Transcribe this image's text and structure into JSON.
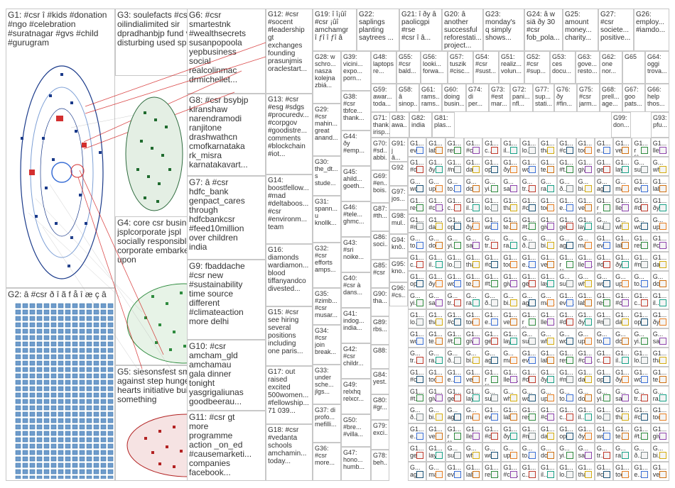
{
  "groups": [
    {
      "id": "G1",
      "label": "G1: #csr î #kids #donation\n#ngo #celebration\n#suratnagar #gvs #child\n#gurugram"
    },
    {
      "id": "G2",
      "label": "G2: â #csr ð î ã f å î æ ç â"
    },
    {
      "id": "G3",
      "label": "G3: soulefacts #csr\noilindialimited sir\ndpradhanbjp fund very\ndisturbing used spread"
    },
    {
      "id": "G4",
      "label": "G4: core csr business\njsplcorporate jspl\nsocially responsible\ncorporate embarked\nupon"
    },
    {
      "id": "G5",
      "label": "G5: siesonsfest small\nagainst step hunger up\nhearts initiative build\nsomething"
    },
    {
      "id": "G6",
      "label": "G6: #csr\nsmartestnk\n#wealthsecrets\nsusanpopoola\nyepbusiness\nsocial\nrealcolinmac\ndrmichellet..."
    },
    {
      "id": "G7",
      "label": "G7: â #csr\nhdfc_bank\ngenpact_cares\nthrough\nhdfcbankcsr\n#feed10million\nover children\nindia"
    },
    {
      "id": "G8",
      "label": "G8: #csr bsybjp\nkiranshaw\nnarendramodi\nranjitone\ndrashwathcn\ncmofkarnataka\nrk_misra\nkarnatakavart..."
    },
    {
      "id": "G9",
      "label": "G9: fbaddache\n#csr new\n#sustainability\ntime source\ndifferent\n#climateaction\nmore delhi"
    },
    {
      "id": "G10",
      "label": "G10: #csr\namcham_gld\namchamau\ngala dinner\ntonight\nyasgrigaliunas\ngoodbeerau..."
    },
    {
      "id": "G11",
      "label": "G11: #csr gt\nmore\nprogramme\naction _on_ed\n#causemarketi...\ncompanies\nfacebook..."
    },
    {
      "id": "G12",
      "label": "G12: #csr\n#socent\n#leadership\ngt\nexchanges\nfounding\nprasunjmis\noraclestart..."
    },
    {
      "id": "G13",
      "label": "G13: #csr\n#esg #sdgs\n#procuredv...\n#corpgov\n#goodistre...\ncomments\n#blockchain\n#iot..."
    },
    {
      "id": "G14",
      "label": "G14:\nboostfellow...\n#mad\n#deltaboos...\n#csr\n#environm...\nteam"
    },
    {
      "id": "G15",
      "label": "G15: #csr\nsee hiring\nseveral\npositions\nincluding\none paris..."
    },
    {
      "id": "G16",
      "label": "G16:\ndiamonds\nwardiamon...\nblood\ntiffanyandco\ndivested..."
    },
    {
      "id": "G17",
      "label": "G17: out\nraised\nexcited\n500women...\n#fellowship...\n71 039..."
    },
    {
      "id": "G18",
      "label": "G18: #csr\n#vedanta\nschools\namchamin...\ntoday..."
    },
    {
      "id": "G19",
      "label": "G19: î î¡ûî\n#csr ¡ûî\namchamgr\nî ƒî î ƒî â"
    },
    {
      "id": "G20",
      "label": "G20: â\nanother\nsuccessful\nreforestati...\nproject..."
    },
    {
      "id": "G21",
      "label": "G21: î ðy â\npaolicgpi\n#rse\n#csr î â..."
    },
    {
      "id": "G22",
      "label": "G22:\nsaplings\nplanting\nsaytrees ..."
    },
    {
      "id": "G23",
      "label": "G23:\nmonday's\nq simply\nshows..."
    },
    {
      "id": "G24",
      "label": "G24: â w\nsiä ðy 30\n#csr\nfob_pola..."
    },
    {
      "id": "G25",
      "label": "G25:\namount\nmoney...\ncharity..."
    },
    {
      "id": "G26",
      "label": "G26:\nemploy...\n#iamdo..."
    },
    {
      "id": "G27",
      "label": "G27:\n#csr\nsociete...\npositive..."
    },
    {
      "id": "G28",
      "label": "G28: w\nschro...\nnasza\nkolejna\nzbiá..."
    },
    {
      "id": "G29",
      "label": "G29:\n#csr\nmahin...\ngreat\nanand..."
    },
    {
      "id": "G30",
      "label": "G30:\nthe_dt...\ns\nstude..."
    },
    {
      "id": "G31",
      "label": "G31:\nspann...\nu\nknollk..."
    },
    {
      "id": "G32",
      "label": "G32:\n#csr\nefforts\namps..."
    },
    {
      "id": "G33",
      "label": "G33:\nunder\nsche...\njlgs..."
    },
    {
      "id": "G34",
      "label": "G34:\n#csr\njoin\nbreak..."
    },
    {
      "id": "G35",
      "label": "G35:\n#zimb...\n#csr\nmusar..."
    },
    {
      "id": "G36",
      "label": "G36:\n#csr\nmore..."
    },
    {
      "id": "G37",
      "label": "G37: di\nprofo...\nmefilli..."
    },
    {
      "id": "G38",
      "label": "G38:\n#csr\ntbfce...\nthank..."
    },
    {
      "id": "G39",
      "label": "G39:\nvicini...\nexpo...\nporn..."
    },
    {
      "id": "G40",
      "label": "G40:\n#csr à\ndans..."
    },
    {
      "id": "G41",
      "label": "G41:\nindog...\nindia..."
    },
    {
      "id": "G42",
      "label": "G42:\n#csr\nchildr..."
    },
    {
      "id": "G43",
      "label": "G43:\n#sri\nnoike..."
    },
    {
      "id": "G44",
      "label": "G44:\nðy\n#emp..."
    },
    {
      "id": "G45",
      "label": "G45:\nahild...\ngoeth..."
    },
    {
      "id": "G46",
      "label": "G46:\n#tele...\nghmc..."
    },
    {
      "id": "G47",
      "label": "G47:\nhono...\nhumb..."
    },
    {
      "id": "G48",
      "label": "G48:\nlaptops\nre..."
    },
    {
      "id": "G49",
      "label": "G49:\nrelxhq\nrelxcr..."
    },
    {
      "id": "G50",
      "label": "G50:\n#bre...\n#villa..."
    },
    {
      "id": "G51",
      "label": "G51:\nrealiz...\nvolun..."
    },
    {
      "id": "G52",
      "label": "G52:\n#csr\n#sup..."
    },
    {
      "id": "G53",
      "label": "G53:\nces\ndocu..."
    },
    {
      "id": "G54",
      "label": "G54:\n#csr\n#sust..."
    },
    {
      "id": "G55",
      "label": "G55:\n#csr\nbald..."
    },
    {
      "id": "G56",
      "label": "G56:\nlooki...\nforwa..."
    },
    {
      "id": "G57",
      "label": "G57:\ntuszik\n#cisc..."
    },
    {
      "id": "G58",
      "label": "G58:\nâ\nsinop..."
    },
    {
      "id": "G59",
      "label": "G59:\nawar...\ntoda..."
    },
    {
      "id": "G60",
      "label": "G60:\ndoing\nbusin..."
    },
    {
      "id": "G61",
      "label": "G61:\nrams...\nrams..."
    },
    {
      "id": "G62",
      "label": "G62:\none\nnor..."
    },
    {
      "id": "G63",
      "label": "G63:\ngove...\nresto..."
    },
    {
      "id": "G64",
      "label": "G64:\noggi\ntrova..."
    },
    {
      "id": "G65",
      "label": "G65"
    },
    {
      "id": "G66",
      "label": "G66:\nhelp\nthos..."
    },
    {
      "id": "G67",
      "label": "G67:\ngoo\npats..."
    },
    {
      "id": "G68",
      "label": "G68:\nprell...\nage..."
    },
    {
      "id": "G69",
      "label": "G69:\n#en...\nbois..."
    },
    {
      "id": "G70",
      "label": "G70:\n#sd...\nabbi..."
    },
    {
      "id": "G71",
      "label": "G71:\nthank...\nirisp..."
    },
    {
      "id": "G72",
      "label": "G72:\npani...\nnfl..."
    },
    {
      "id": "G73",
      "label": "G73:\n#est\nmar..."
    },
    {
      "id": "G74",
      "label": "G74:\ndi\nper..."
    },
    {
      "id": "G75",
      "label": "G75:\n#csr\njarm..."
    },
    {
      "id": "G76",
      "label": "G76:\nðy\n#fin..."
    },
    {
      "id": "G77",
      "label": "G77:\nsup...\nstati..."
    },
    {
      "id": "G78",
      "label": "G78:\nbeh..."
    },
    {
      "id": "G79",
      "label": "G79:\nexci..."
    },
    {
      "id": "G80",
      "label": "G80:\n#gr..."
    },
    {
      "id": "G81",
      "label": "G81:\nplas..."
    },
    {
      "id": "G82",
      "label": "G82:\nindia"
    },
    {
      "id": "G83",
      "label": "G83:\nawa..."
    },
    {
      "id": "G84",
      "label": "G84:\nyest..."
    },
    {
      "id": "G85",
      "label": "G85:\n#csr"
    },
    {
      "id": "G86",
      "label": "G86:\nsoci..."
    },
    {
      "id": "G87",
      "label": "G87:\n#th..."
    },
    {
      "id": "G88",
      "label": "G88:"
    },
    {
      "id": "G89",
      "label": "G89:\nrbs..."
    },
    {
      "id": "G90",
      "label": "G90:\ntha..."
    },
    {
      "id": "G91",
      "label": "G91:\nj\nâ..."
    },
    {
      "id": "G92",
      "label": "G92"
    },
    {
      "id": "G93",
      "label": "G93:\npfu..."
    },
    {
      "id": "G94",
      "label": "G94:\nknô..."
    },
    {
      "id": "G95",
      "label": "G95:\nkno..."
    },
    {
      "id": "G96",
      "label": "G96:\n#cs..."
    },
    {
      "id": "G97",
      "label": "G97:\njos..."
    },
    {
      "id": "G98",
      "label": "G98:\nmul..."
    },
    {
      "id": "G99",
      "label": "G99:\ndon..."
    }
  ],
  "small_groups": [
    {
      "label": "G1...\neve..."
    },
    {
      "label": "G1...\nlab..."
    },
    {
      "label": "G1...\nres..."
    },
    {
      "label": "G1...\n#cs..."
    },
    {
      "label": "G1...\nc..."
    },
    {
      "label": "G1...\nil..."
    },
    {
      "label": "G1...\nlo..."
    },
    {
      "label": "G1...\ntha..."
    },
    {
      "label": "G1...\n#c..."
    },
    {
      "label": "G1...\ntod..."
    },
    {
      "label": "G1...\ne..."
    },
    {
      "label": "G1...\nvel..."
    },
    {
      "label": "G1...\nr fâ..."
    },
    {
      "label": "G1...\nlleg..."
    },
    {
      "label": "G1...\n#d..."
    },
    {
      "label": "G1...\nðy..."
    },
    {
      "label": "G1...\n#m..."
    },
    {
      "label": "G1...\nda..."
    },
    {
      "label": "G1...\nop..."
    },
    {
      "label": "G1...\nðy..."
    },
    {
      "label": "G1...\nwo..."
    },
    {
      "label": "G1...\nte..."
    },
    {
      "label": "G1...\n#t..."
    },
    {
      "label": "G1...\ngiv..."
    },
    {
      "label": "G1...\nge..."
    },
    {
      "label": "G1...\nlay..."
    },
    {
      "label": "G...\nsu..."
    },
    {
      "label": "G...\nwh..."
    },
    {
      "label": "G...\nwo..."
    },
    {
      "label": "G...\nup..."
    },
    {
      "label": "G...\nto..."
    },
    {
      "label": "G...\ndo..."
    },
    {
      "label": "G...\nyi..."
    },
    {
      "label": "G...\nsa..."
    },
    {
      "label": "G...\ntr..."
    },
    {
      "label": "G...\nra..."
    },
    {
      "label": "G...\nð..."
    },
    {
      "label": "G...\nbi..."
    },
    {
      "label": "G...\nag..."
    },
    {
      "label": "G...\nma..."
    }
  ],
  "edge_color": "#cc0000",
  "node_colors": {
    "G1": "#1a3a8a",
    "G2": "#2e6ea3",
    "G3": "#999999",
    "G4": "#2e8b3e",
    "G5": "#b22222",
    "G6": "#d07010",
    "G7": "#2f6f9f",
    "G8": "#6b8e23"
  }
}
